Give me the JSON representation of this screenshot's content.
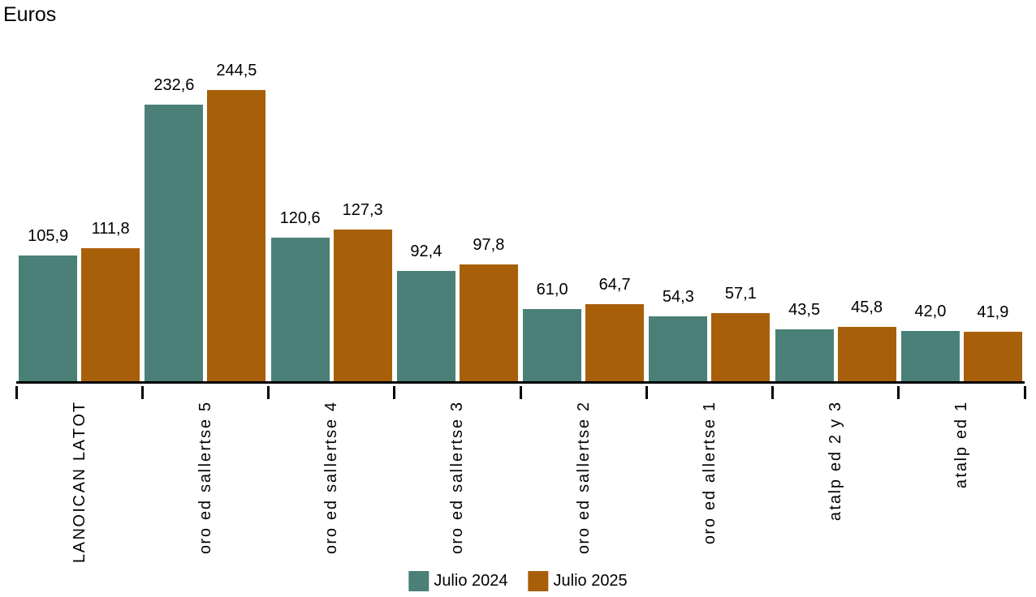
{
  "chart_data": {
    "type": "bar",
    "unit_label": "Euros",
    "categories": [
      "TOTAL NACIONAL",
      "5 estrellas de oro",
      "4 estrellas de oro",
      "3 estrellas de oro",
      "2 estrellas de oro",
      "1 estrella de oro",
      "3 y 2 de plata",
      "1 de plata"
    ],
    "series": [
      {
        "name": "Julio 2024",
        "color": "#4a8078",
        "values": [
          105.9,
          232.6,
          120.6,
          92.4,
          61.0,
          54.3,
          43.5,
          42.0
        ],
        "labels": [
          "105,9",
          "232,6",
          "120,6",
          "92,4",
          "61,0",
          "54,3",
          "43,5",
          "42,0"
        ]
      },
      {
        "name": "Julio 2025",
        "color": "#a85f0a",
        "values": [
          111.8,
          244.5,
          127.3,
          97.8,
          64.7,
          57.1,
          45.8,
          41.9
        ],
        "labels": [
          "111,8",
          "244,5",
          "127,3",
          "97,8",
          "64,7",
          "57,1",
          "45,8",
          "41,9"
        ]
      }
    ],
    "value_labels_visible": true,
    "grid": false,
    "y_axis_visible": false,
    "x_axis_color": "#000000",
    "legend_position": "bottom",
    "background_color": "#ffffff"
  }
}
